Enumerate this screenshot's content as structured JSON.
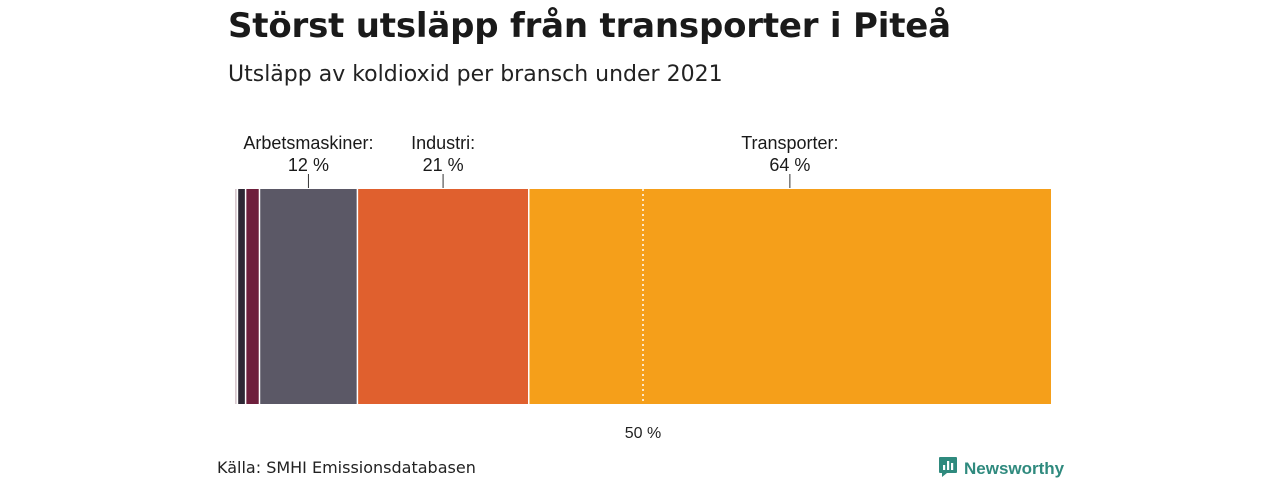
{
  "title": "Störst utsläpp från transporter i Piteå",
  "subtitle": "Utsläpp av koldioxid per bransch under 2021",
  "source": "Källa: SMHI Emissionsdatabasen",
  "brand": {
    "name": "Newsworthy",
    "icon": "newsworthy-logo-icon",
    "color": "#2f8a7e"
  },
  "chart_data": {
    "type": "bar",
    "orientation": "horizontal-stacked-100",
    "segments": [
      {
        "value": 0.3,
        "color": "#d9c9cf",
        "label": "",
        "value_label": ""
      },
      {
        "value": 1.0,
        "color": "#2d2734",
        "label": "",
        "value_label": ""
      },
      {
        "value": 1.7,
        "color": "#6e1f3c",
        "label": "",
        "value_label": ""
      },
      {
        "value": 12,
        "color": "#5b5866",
        "label": "Arbetsmaskiner:",
        "value_label": "12 %"
      },
      {
        "value": 21,
        "color": "#e0602e",
        "label": "Industri:",
        "value_label": "21 %"
      },
      {
        "value": 64,
        "color": "#f59f1a",
        "label": "Transporter:",
        "value_label": "64 %"
      }
    ],
    "reference_line": {
      "value": 50,
      "label": "50 %"
    },
    "xlim": [
      0,
      100
    ]
  }
}
